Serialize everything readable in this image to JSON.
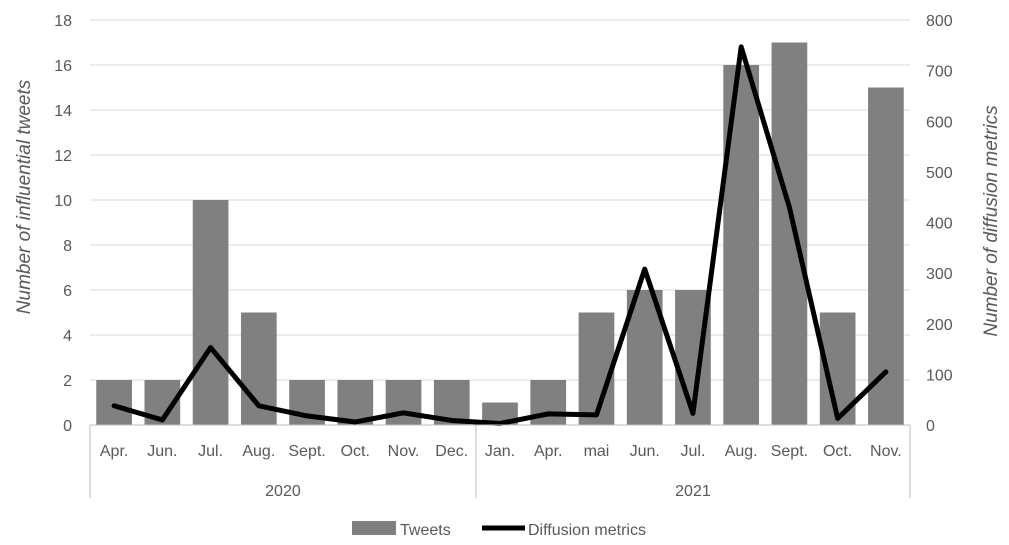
{
  "chart_data": {
    "type": "bar",
    "categories": [
      "Apr.",
      "Jun.",
      "Jul.",
      "Aug.",
      "Sept.",
      "Oct.",
      "Nov.",
      "Dec.",
      "Jan.",
      "Apr.",
      "mai",
      "Jun.",
      "Jul.",
      "Aug.",
      "Sept.",
      "Oct.",
      "Nov."
    ],
    "groups": [
      {
        "label": "2020",
        "start": 0,
        "end": 7
      },
      {
        "label": "2021",
        "start": 8,
        "end": 16
      }
    ],
    "series": [
      {
        "name": "Tweets",
        "type": "bar",
        "axis": "left",
        "color": "#808080",
        "values": [
          2,
          2,
          10,
          5,
          2,
          2,
          2,
          2,
          1,
          2,
          5,
          6,
          6,
          16,
          17,
          5,
          15
        ]
      },
      {
        "name": "Diffusion metrics",
        "type": "line",
        "axis": "right",
        "color": "#000000",
        "values": [
          38,
          10,
          153,
          38,
          18,
          6,
          24,
          9,
          3,
          22,
          20,
          308,
          23,
          747,
          430,
          13,
          105
        ]
      }
    ],
    "ylabel": "Number of influential tweets",
    "y2label": "Number of diffusion metrics",
    "ylim": [
      0,
      18
    ],
    "yticks": [
      0,
      2,
      4,
      6,
      8,
      10,
      12,
      14,
      16,
      18
    ],
    "y2lim": [
      0,
      800
    ],
    "y2ticks": [
      0,
      100,
      200,
      300,
      400,
      500,
      600,
      700,
      800
    ],
    "grid": true,
    "legend_position": "bottom"
  }
}
